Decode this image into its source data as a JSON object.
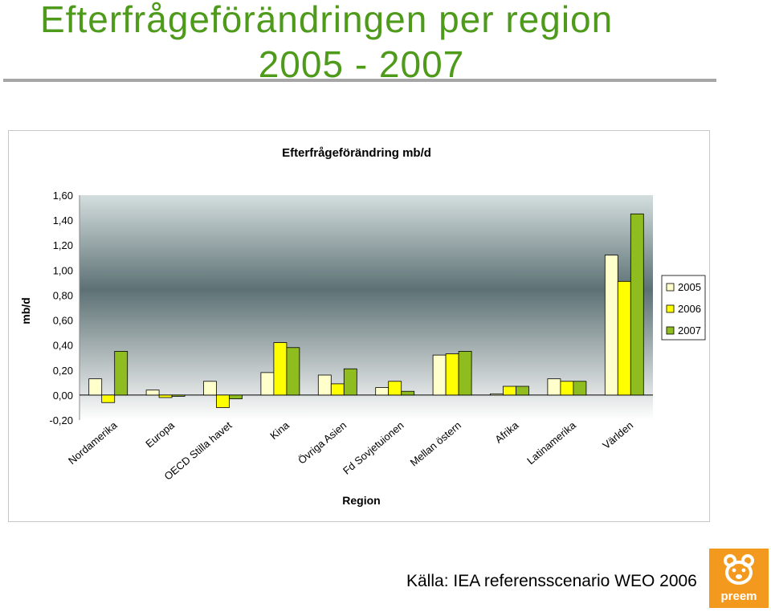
{
  "slide": {
    "title_line1": "Efterfrågeförändringen per region",
    "title_line2": "2005 - 2007",
    "source": "Källa: IEA referensscenario WEO 2006",
    "logo_text": "preem"
  },
  "colors": {
    "title": "#4e9a1a",
    "series_2005": "#ffffcc",
    "series_2006": "#ffff00",
    "series_2007": "#8fbc1e",
    "plot_top": "#d2dcdc",
    "plot_mid": "#5e7174",
    "logo": "#f39a1e"
  },
  "chart_data": {
    "type": "bar",
    "title": "Efterfrågeförändring mb/d",
    "xlabel": "Region",
    "ylabel": "mb/d",
    "ylim": [
      -0.2,
      1.6
    ],
    "yticks": [
      "1,60",
      "1,40",
      "1,20",
      "1,00",
      "0,80",
      "0,60",
      "0,40",
      "0,20",
      "0,00",
      "-0,20"
    ],
    "categories": [
      "Nordamerika",
      "Europa",
      "OECD Stilla havet",
      "Kina",
      "Övriga Asien",
      "Fd Sovjetuionen",
      "Mellan östern",
      "Afrika",
      "Latinamerika",
      "Världen"
    ],
    "series": [
      {
        "name": "2005",
        "values": [
          0.13,
          0.04,
          0.11,
          0.18,
          0.16,
          0.06,
          0.32,
          0.01,
          0.13,
          1.12
        ]
      },
      {
        "name": "2006",
        "values": [
          -0.06,
          -0.02,
          -0.1,
          0.42,
          0.09,
          0.11,
          0.33,
          0.07,
          0.11,
          0.91
        ]
      },
      {
        "name": "2007",
        "values": [
          0.35,
          -0.01,
          -0.03,
          0.38,
          0.21,
          0.03,
          0.35,
          0.07,
          0.11,
          1.45
        ]
      }
    ],
    "legend_position": "right"
  }
}
